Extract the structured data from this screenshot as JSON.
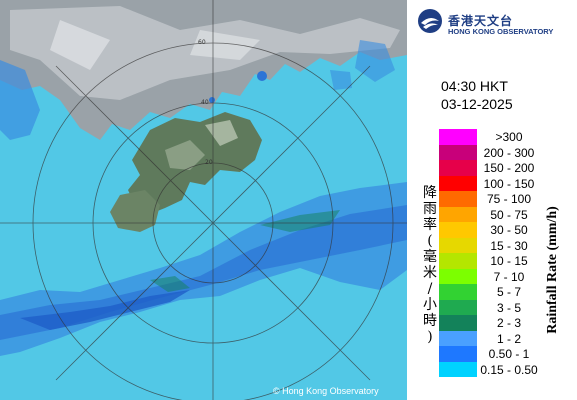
{
  "organization": {
    "name_cn": "香港天文台",
    "name_en": "HONG KONG OBSERVATORY"
  },
  "radar": {
    "time": "04:30 HKT",
    "date": "03-12-2025",
    "copyright": "© Hong Kong Observatory",
    "range_rings_km": [
      "20",
      "40",
      "60"
    ]
  },
  "legend": {
    "title_en": "Rainfall Rate (mm/h)",
    "title_cn": [
      "降",
      "雨",
      "率",
      "(",
      "毫",
      "米",
      "/",
      "小",
      "時",
      ")"
    ],
    "bins": [
      {
        "label": ">300",
        "color": "#ff00ff"
      },
      {
        "label": "200 - 300",
        "color": "#c8007a"
      },
      {
        "label": "150 - 200",
        "color": "#e6004a"
      },
      {
        "label": "100 - 150",
        "color": "#ff0000"
      },
      {
        "label": "75 - 100",
        "color": "#ff6a00"
      },
      {
        "label": "50 - 75",
        "color": "#ffa500"
      },
      {
        "label": "30 - 50",
        "color": "#ffc800"
      },
      {
        "label": "15 - 30",
        "color": "#e6d800"
      },
      {
        "label": "10 - 15",
        "color": "#b4e600"
      },
      {
        "label": "7 - 10",
        "color": "#7cff00"
      },
      {
        "label": "5 - 7",
        "color": "#32d232"
      },
      {
        "label": "3 - 5",
        "color": "#1faa50"
      },
      {
        "label": "2 - 3",
        "color": "#13825a"
      },
      {
        "label": "1 - 2",
        "color": "#4aa0ff"
      },
      {
        "label": "0.50 - 1",
        "color": "#1e78ff"
      },
      {
        "label": "0.15 - 0.50",
        "color": "#00d2ff"
      }
    ]
  }
}
